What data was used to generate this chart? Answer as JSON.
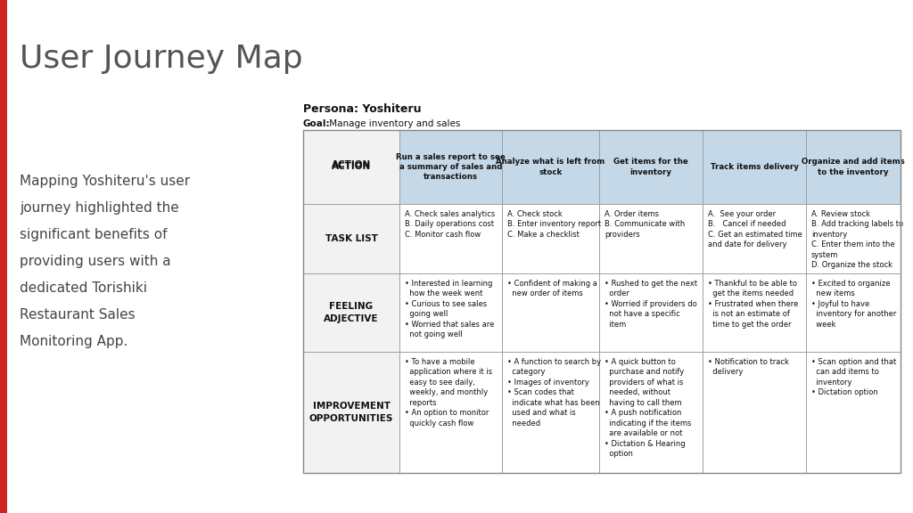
{
  "title": "User Journey Map",
  "persona_bold": "Persona: Yoshiteru",
  "goal_label": "Goal:",
  "goal_rest": " Manage inventory and sales",
  "sidebar_lines": [
    "Mapping Yoshiteru's user",
    "journey highlighted the",
    "significant benefits of",
    "providing users with a",
    "dedicated Torishiki",
    "Restaurant Sales",
    "Monitoring App."
  ],
  "bg_color": "#ffffff",
  "header_bg": "#c5d8e8",
  "row_label_bg": "#f2f2f2",
  "cell_bg": "#ffffff",
  "border_color": "#aaaaaa",
  "red_bar_color": "#cc2222",
  "title_color": "#555555",
  "sidebar_color": "#444444",
  "col_headers": [
    "Run a sales report to see\na summary of sales and\ntransactions",
    "Analyze what is left from\nstock",
    "Get items for the\ninventory",
    "Track items delivery",
    "Organize and add items\nto the inventory"
  ],
  "task_list": [
    "A. Check sales analytics\nB. Daily operations cost\nC. Monitor cash flow",
    "A. Check stock\nB. Enter inventory report\nC. Make a checklist",
    "A. Order items\nB. Communicate with\nproviders",
    "A.  See your order\nB.   Cancel if needed\nC. Get an estimated time\nand date for delivery",
    "A. Review stock\nB. Add tracking labels to\ninventory\nC. Enter them into the\nsystem\nD. Organize the stock"
  ],
  "feeling": [
    "• Interested in learning\n  how the week went\n• Curious to see sales\n  going well\n• Worried that sales are\n  not going well",
    "• Confident of making a\n  new order of items",
    "• Rushed to get the next\n  order\n• Worried if providers do\n  not have a specific\n  item",
    "• Thankful to be able to\n  get the items needed\n• Frustrated when there\n  is not an estimate of\n  time to get the order",
    "• Excited to organize\n  new items\n• Joyful to have\n  inventory for another\n  week"
  ],
  "improvement": [
    "• To have a mobile\n  application where it is\n  easy to see daily,\n  weekly, and monthly\n  reports\n• An option to monitor\n  quickly cash flow",
    "• A function to search by\n  category\n• Images of inventory\n• Scan codes that\n  indicate what has been\n  used and what is\n  needed",
    "• A quick button to\n  purchase and notify\n  providers of what is\n  needed, without\n  having to call them\n• A push notification\n  indicating if the items\n  are available or not\n• Dictation & Hearing\n  option",
    "• Notification to track\n  delivery",
    "• Scan option and that\n  can add items to\n  inventory\n• Dictation option"
  ]
}
